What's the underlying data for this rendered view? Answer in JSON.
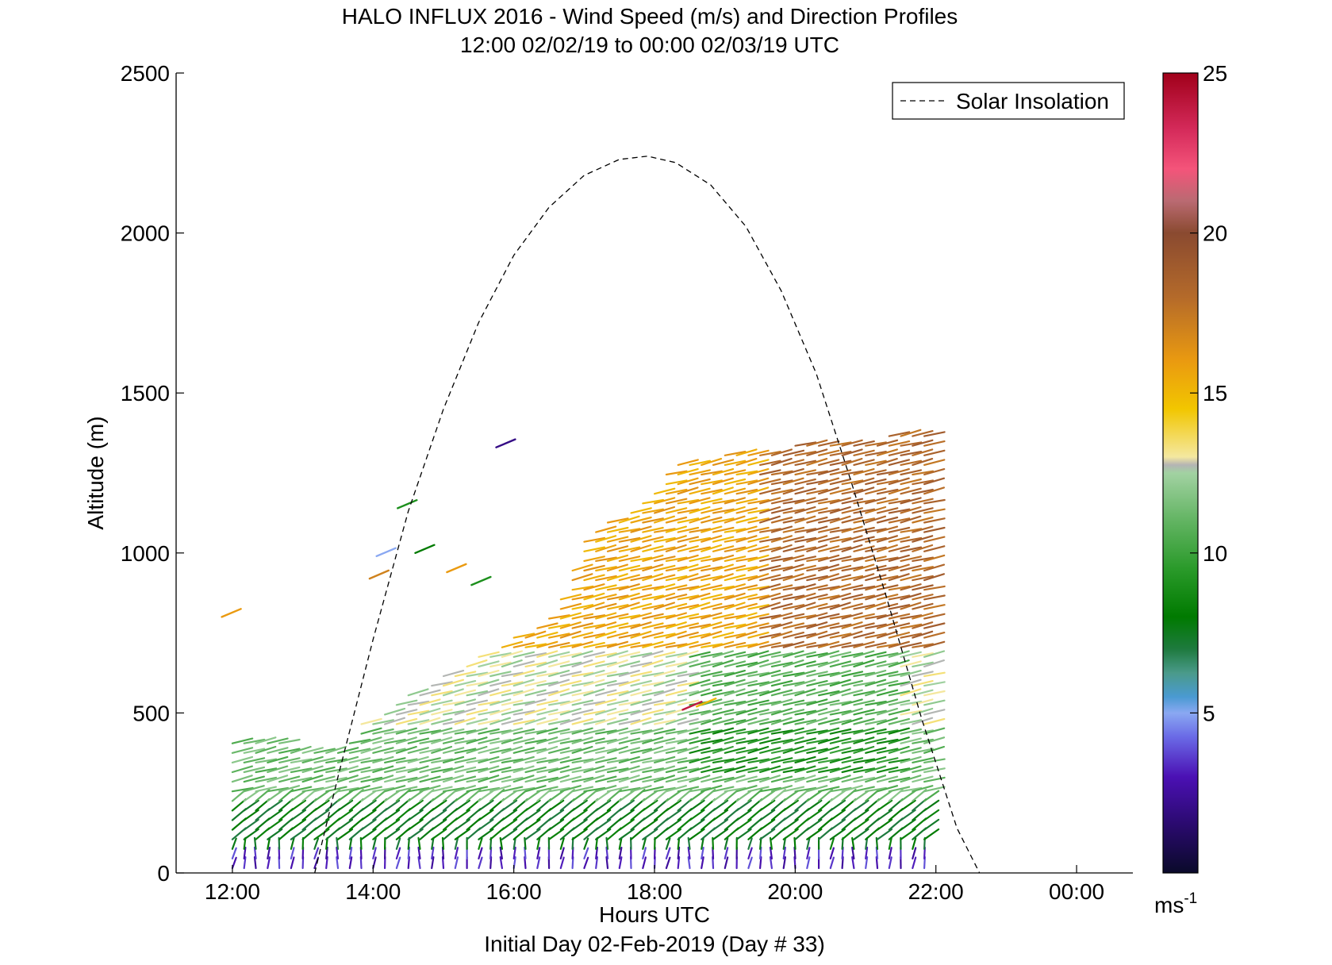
{
  "chart_data": {
    "type": "scatter",
    "title": "HALO INFLUX 2016 - Wind Speed (m/s) and Direction Profiles",
    "subtitle": "12:00 02/02/19 to 00:00 02/03/19  UTC",
    "xlabel": "Hours UTC",
    "xlabel2": "Initial Day 02-Feb-2019 (Day # 33)",
    "ylabel": "Altitude (m)",
    "xlim": [
      11.2,
      24.8
    ],
    "ylim": [
      0,
      2500
    ],
    "x_ticks": [
      12,
      14,
      16,
      18,
      20,
      22,
      24
    ],
    "x_tick_labels": [
      "12:00",
      "14:00",
      "16:00",
      "18:00",
      "20:00",
      "22:00",
      "00:00"
    ],
    "y_ticks": [
      0,
      500,
      1000,
      1500,
      2000,
      2500
    ],
    "y_tick_labels": [
      "0",
      "500",
      "1000",
      "1500",
      "2000",
      "2500"
    ],
    "colorbar": {
      "min": 0,
      "max": 25,
      "ticks": [
        5,
        10,
        15,
        20,
        25
      ],
      "tick_labels": [
        "5",
        "10",
        "15",
        "20",
        "25"
      ],
      "unit_label": "ms",
      "unit_exponent": "-1"
    },
    "legend": {
      "position": "top-right",
      "entries": [
        "Solar Insolation"
      ]
    },
    "series": [
      {
        "name": "Solar Insolation",
        "style": "dashed",
        "color": "#000000",
        "x": [
          13.17,
          13.5,
          14.0,
          14.5,
          15.0,
          15.5,
          16.0,
          16.5,
          17.0,
          17.5,
          17.9,
          18.3,
          18.8,
          19.3,
          19.8,
          20.3,
          20.8,
          21.3,
          21.8,
          22.3,
          22.62
        ],
        "y": [
          0,
          300,
          730,
          1130,
          1450,
          1720,
          1930,
          2080,
          2180,
          2230,
          2240,
          2220,
          2150,
          2020,
          1820,
          1560,
          1220,
          860,
          480,
          140,
          0
        ]
      }
    ],
    "wind_profiles": {
      "time_start": 12.0,
      "time_step": 0.1667,
      "altitude_step": 30,
      "profile_tops": [
        420,
        420,
        420,
        420,
        410,
        400,
        400,
        400,
        400,
        400,
        410,
        480,
        480,
        520,
        540,
        560,
        570,
        590,
        620,
        640,
        660,
        680,
        700,
        720,
        740,
        760,
        780,
        800,
        860,
        960,
        1040,
        1080,
        1100,
        1120,
        1140,
        1160,
        1200,
        1250,
        1280,
        1290,
        1300,
        1300,
        1310,
        1320,
        1320,
        1330,
        1330,
        1330,
        1340,
        1340,
        1340,
        1350,
        1350,
        1360,
        1360,
        1360,
        1370,
        1370,
        1370,
        1370
      ],
      "speed_by_altitude_band": [
        {
          "max_altitude": 60,
          "speed_ms": 3
        },
        {
          "max_altitude": 200,
          "speed_ms": 7.5
        },
        {
          "max_altitude": 450,
          "speed_ms": 11
        },
        {
          "max_altitude": 700,
          "speed_ms": 12.5
        },
        {
          "max_altitude": 1400,
          "speed_ms": 15.5
        }
      ],
      "direction": "mostly westerly to south-westerly; variable near the surface"
    },
    "isolated_vectors": [
      {
        "x": 11.85,
        "y": 800,
        "speed": 16
      },
      {
        "x": 13.95,
        "y": 920,
        "speed": 17
      },
      {
        "x": 14.05,
        "y": 990,
        "speed": 5
      },
      {
        "x": 14.35,
        "y": 1140,
        "speed": 9
      },
      {
        "x": 14.6,
        "y": 1000,
        "speed": 8
      },
      {
        "x": 15.05,
        "y": 940,
        "speed": 16
      },
      {
        "x": 15.4,
        "y": 900,
        "speed": 9
      },
      {
        "x": 15.75,
        "y": 1330,
        "speed": 2
      },
      {
        "x": 18.4,
        "y": 510,
        "speed": 24
      },
      {
        "x": 18.6,
        "y": 520,
        "speed": 15
      }
    ]
  }
}
